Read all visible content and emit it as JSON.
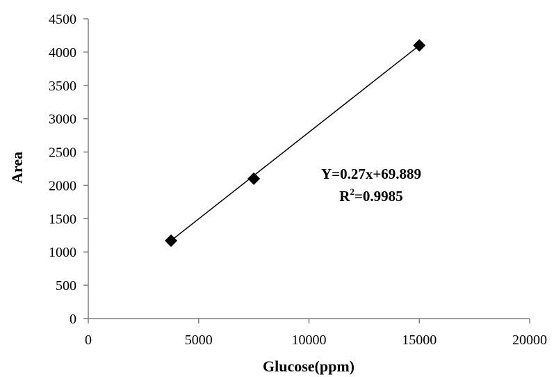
{
  "chart_data": {
    "type": "scatter",
    "title": "",
    "xlabel": "Glucose(ppm)",
    "ylabel": "Area",
    "xlim": [
      0,
      20000
    ],
    "ylim": [
      0,
      4500
    ],
    "x_ticks": [
      0,
      5000,
      10000,
      15000,
      20000
    ],
    "y_ticks": [
      0,
      500,
      1000,
      1500,
      2000,
      2500,
      3000,
      3500,
      4000,
      4500
    ],
    "grid": false,
    "legend": "none",
    "series": [
      {
        "marker": "diamond",
        "color": "#000000",
        "points": [
          {
            "x": 3750,
            "y": 1170
          },
          {
            "x": 7500,
            "y": 2100
          },
          {
            "x": 15000,
            "y": 4100
          }
        ]
      }
    ],
    "trendline": {
      "type": "linear",
      "slope": 0.27,
      "intercept": 69.889,
      "x_range": [
        3750,
        15000
      ]
    },
    "annotations": {
      "equation": "Y=0.27x+69.889",
      "r2_prefix": "R",
      "r2_sup": "2",
      "r2_suffix": "=0.9985"
    }
  }
}
